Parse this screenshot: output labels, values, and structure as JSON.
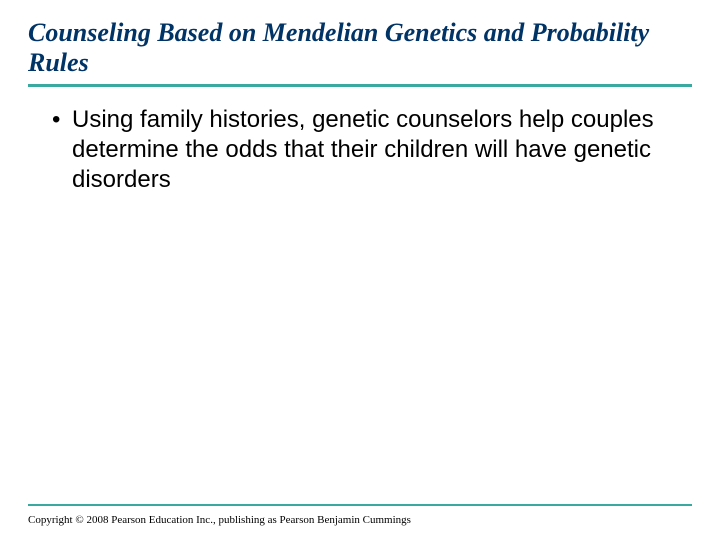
{
  "title": "Counseling Based on Mendelian Genetics and Probability Rules",
  "title_color": "#003366",
  "title_fontsize": 26,
  "title_font": "Times New Roman",
  "title_style": "italic bold",
  "rule_color": "#3aa99f",
  "bullets": [
    "Using family histories, genetic counselors help couples determine the odds that their children will have genetic disorders"
  ],
  "body_fontsize": 24,
  "body_color": "#000000",
  "copyright": "Copyright © 2008 Pearson Education Inc., publishing as Pearson Benjamin Cummings",
  "copyright_fontsize": 11,
  "background_color": "#ffffff",
  "slide_width": 720,
  "slide_height": 540
}
